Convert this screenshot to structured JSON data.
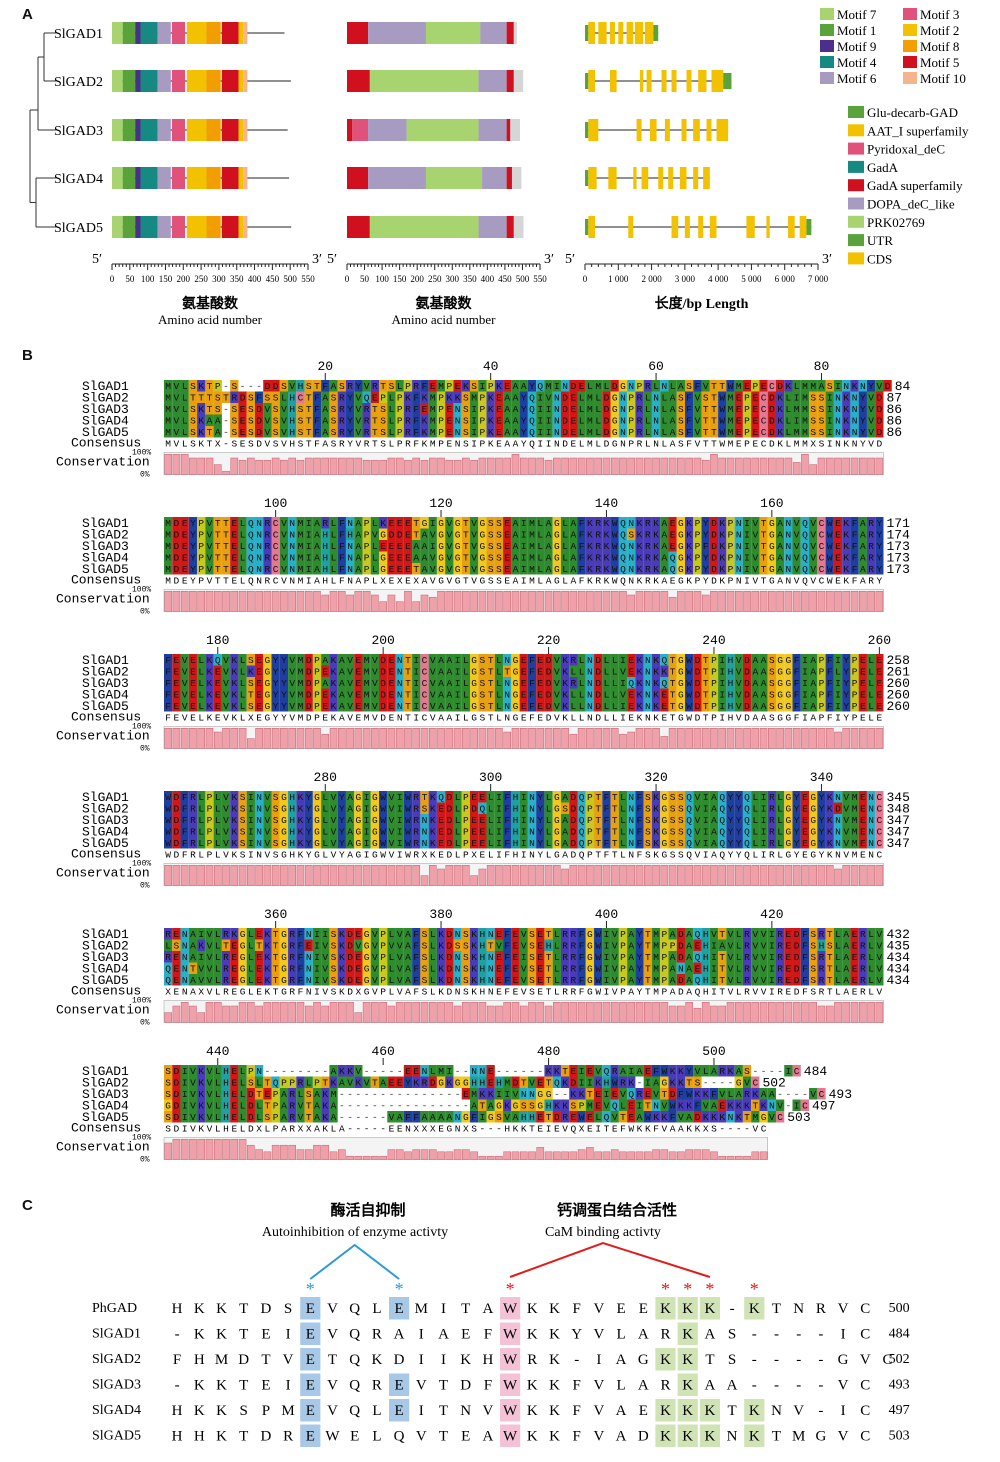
{
  "panel_a": {
    "label": "A",
    "genes": [
      "SlGAD1",
      "SlGAD2",
      "SlGAD3",
      "SlGAD4",
      "SlGAD5"
    ],
    "motif_legend": [
      {
        "name": "Motif 7",
        "color": "#a8d46f"
      },
      {
        "name": "Motif 3",
        "color": "#e0527a"
      },
      {
        "name": "Motif 1",
        "color": "#5aa33a"
      },
      {
        "name": "Motif 2",
        "color": "#f2c200"
      },
      {
        "name": "Motif 9",
        "color": "#4b2f8a"
      },
      {
        "name": "Motif 8",
        "color": "#f29e00"
      },
      {
        "name": "Motif 4",
        "color": "#168a82"
      },
      {
        "name": "Motif 5",
        "color": "#d0101e"
      },
      {
        "name": "Motif 6",
        "color": "#a79bc2"
      },
      {
        "name": "Motif 10",
        "color": "#f5b48c"
      }
    ],
    "domain_legend": [
      {
        "name": "Glu-decarb-GAD",
        "color": "#5aa33a"
      },
      {
        "name": "AAT_I superfamily",
        "color": "#f2c200"
      },
      {
        "name": "Pyridoxal_deC",
        "color": "#e0527a"
      },
      {
        "name": "GadA",
        "color": "#168a82"
      },
      {
        "name": "GadA superfamily",
        "color": "#d0101e"
      },
      {
        "name": "DOPA_deC_like",
        "color": "#a79bc2"
      },
      {
        "name": "PRK02769",
        "color": "#a8d46f"
      },
      {
        "name": "UTR",
        "color": "#5aa33a"
      },
      {
        "name": "CDS",
        "color": "#f2c200"
      }
    ],
    "axis1": {
      "ticks": [
        "0",
        "50",
        "100",
        "150",
        "200",
        "250",
        "300",
        "350",
        "400",
        "450",
        "500",
        "550"
      ],
      "label_cn": "氨基酸数",
      "label_en": "Amino acid number",
      "end5": "5′",
      "end3": "3′"
    },
    "axis2": {
      "ticks": [
        "0",
        "50",
        "100",
        "150",
        "200",
        "250",
        "300",
        "350",
        "400",
        "450",
        "500",
        "550"
      ],
      "label_cn": "氨基酸数",
      "label_en": "Amino acid number",
      "end5": "5′",
      "end3": "3′"
    },
    "axis3": {
      "ticks": [
        "0",
        "1 000",
        "2 000",
        "3 000",
        "4 000",
        "5 000",
        "6 000",
        "7 000"
      ],
      "label_cn": "长度/bp Length",
      "end5": "5′",
      "end3": "3′"
    },
    "motifs": [
      {
        "name": "Motif 7",
        "start": 0,
        "end": 30
      },
      {
        "name": "Motif 1",
        "start": 30,
        "end": 65
      },
      {
        "name": "Motif 9",
        "start": 65,
        "end": 80
      },
      {
        "name": "Motif 4",
        "start": 80,
        "end": 128
      },
      {
        "name": "Motif 6",
        "start": 128,
        "end": 165
      },
      {
        "name": "Motif 3",
        "start": 168,
        "end": 205
      },
      {
        "name": "Motif 2",
        "start": 210,
        "end": 265
      },
      {
        "name": "Motif 8",
        "start": 265,
        "end": 305
      },
      {
        "name": "Motif 5",
        "start": 308,
        "end": 355
      },
      {
        "name": "Motif 2",
        "start": 355,
        "end": 368
      },
      {
        "name": "Motif 10",
        "start": 368,
        "end": 380
      }
    ],
    "protein_lengths": [
      484,
      502,
      493,
      497,
      503
    ],
    "domains": [
      [
        {
          "name": "GadA superfamily",
          "start": 0,
          "end": 60
        },
        {
          "name": "DOPA_deC_like",
          "start": 60,
          "end": 225
        },
        {
          "name": "PRK02769",
          "start": 225,
          "end": 380
        },
        {
          "name": "DOPA_deC_like",
          "start": 380,
          "end": 455
        },
        {
          "name": "GadA superfamily",
          "start": 455,
          "end": 475
        }
      ],
      [
        {
          "name": "GadA superfamily",
          "start": 0,
          "end": 65
        },
        {
          "name": "PRK02769",
          "start": 65,
          "end": 375
        },
        {
          "name": "DOPA_deC_like",
          "start": 375,
          "end": 455
        },
        {
          "name": "GadA superfamily",
          "start": 455,
          "end": 475
        }
      ],
      [
        {
          "name": "GadA superfamily",
          "start": 0,
          "end": 15
        },
        {
          "name": "Pyridoxal_deC",
          "start": 15,
          "end": 60
        },
        {
          "name": "DOPA_deC_like",
          "start": 60,
          "end": 170
        },
        {
          "name": "PRK02769",
          "start": 170,
          "end": 375
        },
        {
          "name": "DOPA_deC_like",
          "start": 375,
          "end": 455
        },
        {
          "name": "GadA superfamily",
          "start": 455,
          "end": 465
        }
      ],
      [
        {
          "name": "GadA superfamily",
          "start": 0,
          "end": 60
        },
        {
          "name": "DOPA_deC_like",
          "start": 60,
          "end": 225
        },
        {
          "name": "PRK02769",
          "start": 225,
          "end": 385
        },
        {
          "name": "DOPA_deC_like",
          "start": 385,
          "end": 455
        },
        {
          "name": "GadA superfamily",
          "start": 455,
          "end": 470
        }
      ],
      [
        {
          "name": "GadA superfamily",
          "start": 0,
          "end": 65
        },
        {
          "name": "PRK02769",
          "start": 65,
          "end": 375
        },
        {
          "name": "DOPA_deC_like",
          "start": 375,
          "end": 455
        },
        {
          "name": "GadA superfamily",
          "start": 455,
          "end": 475
        }
      ]
    ],
    "genes_struct": [
      {
        "length": 2200,
        "utr": [
          [
            0,
            100
          ],
          [
            2050,
            2200
          ]
        ],
        "cds": [
          [
            100,
            300
          ],
          [
            400,
            650
          ],
          [
            750,
            900
          ],
          [
            1000,
            1150
          ],
          [
            1250,
            1450
          ],
          [
            1500,
            1750
          ],
          [
            1800,
            2050
          ]
        ]
      },
      {
        "length": 4400,
        "utr": [
          [
            0,
            100
          ],
          [
            4150,
            4400
          ]
        ],
        "cds": [
          [
            100,
            300
          ],
          [
            750,
            950
          ],
          [
            1650,
            1750
          ],
          [
            1850,
            2000
          ],
          [
            2300,
            2450
          ],
          [
            2600,
            2750
          ],
          [
            3050,
            3200
          ],
          [
            3400,
            3650
          ],
          [
            3800,
            4150
          ]
        ]
      },
      {
        "length": 4300,
        "utr": [
          [
            0,
            100
          ]
        ],
        "cds": [
          [
            100,
            400
          ],
          [
            1550,
            1700
          ],
          [
            1950,
            2150
          ],
          [
            2400,
            2550
          ],
          [
            2900,
            3050
          ],
          [
            3250,
            3450
          ],
          [
            3650,
            3800
          ],
          [
            3950,
            4300
          ]
        ]
      },
      {
        "length": 3750,
        "utr": [
          [
            0,
            100
          ]
        ],
        "cds": [
          [
            100,
            350
          ],
          [
            700,
            950
          ],
          [
            1450,
            1550
          ],
          [
            1700,
            1900
          ],
          [
            2200,
            2350
          ],
          [
            2500,
            2650
          ],
          [
            2850,
            3050
          ],
          [
            3250,
            3400
          ],
          [
            3550,
            3750
          ]
        ]
      },
      {
        "length": 6800,
        "utr": [
          [
            0,
            100
          ],
          [
            6650,
            6800
          ]
        ],
        "cds": [
          [
            100,
            300
          ],
          [
            1300,
            1450
          ],
          [
            2600,
            2800
          ],
          [
            3000,
            3150
          ],
          [
            3400,
            3550
          ],
          [
            3750,
            3950
          ],
          [
            4850,
            5100
          ],
          [
            5450,
            5550
          ],
          [
            6100,
            6300
          ],
          [
            6450,
            6650
          ]
        ]
      }
    ]
  },
  "panel_b": {
    "label": "B",
    "row_labels": [
      "SlGAD1",
      "SlGAD2",
      "SlGAD3",
      "SlGAD4",
      "SlGAD5"
    ],
    "consensus_label": "Consensus",
    "conservation_label": "Conservation",
    "pct_top": "100%",
    "pct_bot": "0%",
    "blocks": [
      {
        "ticks": [
          {
            "label": "20",
            "col": 20
          },
          {
            "label": "40",
            "col": 40
          },
          {
            "label": "60",
            "col": 60
          },
          {
            "label": "80",
            "col": 80
          }
        ],
        "seqs": [
          "MVLSKTP-S---DDSVHSTFASRYVRTSLPRFEMPEKSIPKEAAYQMINDELMLDGNPRLNLASFVTTWMEPECDKLMMASINKNYVD",
          "MVLTTTSTRDSFSSLHCTFASRYVQEPLPKFKMPKKSMPKEAAYQIVNDELMLDGNPRLNLASFVSTWMEPECDKLIMSSINKNYVD",
          "MVLSKTS-SESDVSVHSTFASRYVRTSLPRFEMPENSIPKEAAYQIINDELMLDGNPRLNLASFVTTWMEPECDKLMMSSINKNYVD",
          "MVLSKAA-SESDVSVHSTFASRYVRTSLPRFKMPENSIPKEAAYQIINDELMLDGNPRLNLASFVTTWMEPECDKLIMSSINKNYVD",
          "MVLSKTA-SESDVSVHSTFASRYVRTSLPRFKMPENSIPKEAAYQIINDELMLDGNPRLNLASFVTTWMEPECDKLMMSSINKNYVD"
        ],
        "ends": [
          "84",
          "87",
          "86",
          "86",
          "86"
        ],
        "consensus": "MVLSKTX-SESDVSVHSTFASRYVRTSLPRFKMPENSIPKEAAYQIINDELMLDGNPRLNLASFVTTWMEPECDKLMMXSINKNYVD"
      },
      {
        "ticks": [
          {
            "label": "100",
            "col": 14
          },
          {
            "label": "120",
            "col": 34
          },
          {
            "label": "140",
            "col": 54
          },
          {
            "label": "160",
            "col": 74
          }
        ],
        "seqs": [
          "MDEYPVTTELQNRCVNMIARLFNAPLKEEETGIGVGTVGSSEAIMLAGLAFKRKWQNKRKAEGKPYDKPNIVTGANVQVCWEKFARY",
          "MDEYPVTTELQNRCVNMIAHLFHAPVGDDETAVGVGTVGSSEAIMLAGLAFKRKWQSKRKAEGKPYDKPNIVTGANVQVCWEKFARY",
          "MDEYPVTTELQNRCVNMIAHLFNAPLEEEEAAIGVGTVGSSEAIMLAGLAFKRKWQNKRKAEGKPFDKPNIVTGANVQVCWEKFARY",
          "MDEYPVTTELQNRCVNMIAHLFNAPLGEEEAAVGVGTVGSSEAIMLAGLAFKRKWQNKRKAQGKPYDKPNIVTGANVQVCWEKFARY",
          "MDEYPVTTELQNRCVNMIAHLFNAPLGEEETAVGVGTVGSSEAIMLAGLAFKRKWQNKRKAQGKPYDKPNIVTGANVQVCWEKFARY"
        ],
        "ends": [
          "171",
          "174",
          "173",
          "173",
          "173"
        ],
        "consensus": "MDEYPVTTELQNRCVNMIAHLFNAPLXEXEXAVGVGTVGSSEAIMLAGLAFKRKWQNKRKAEGKPYDKPNIVTGANVQVCWEKFARY"
      },
      {
        "ticks": [
          {
            "label": "180",
            "col": 7
          },
          {
            "label": "200",
            "col": 27
          },
          {
            "label": "220",
            "col": 47
          },
          {
            "label": "240",
            "col": 67
          },
          {
            "label": "260",
            "col": 87
          }
        ],
        "seqs": [
          "FEVELKQVKLSEGYYVMDPAKAVEMVDENTICVAAILGSTLNGEFEDVKRLNDLLIEKNKQTGWDTPIHVDAASGGFIAPFIYPELE",
          "FEVELKEVKLKEGYYVMDPEKAVEMVDENTICVAAILGSTLTGEFEDVKLLNDLLVEKNKKTGWDTPIHVDAASGGFIAPFLYPELE",
          "FEVELKEVKLSEGYYVMDPAKAVEMVDENTICVAAILGSTLNGEFEDVKRLNDLLIQKNKQTGWDTPIHVDAASGGFIAPFIYPELE",
          "FEVELKEVKLTEGYYVMDPEKAVEMVDENTICVAAILGSTLNGEFEDVKLLNDLLVEKNKETGWDTPIHVDAASGGFIAPFIYPELE",
          "FEVELKEVKLSEGYYVMDPEKAVEMVDENTICVAAILGSTLNGEFEDVKLLNDLLIEKNKETGWDTPIHVDAASGGFIAPFIYPELE"
        ],
        "ends": [
          "258",
          "261",
          "260",
          "260",
          "260"
        ],
        "consensus": "FEVELKEVKLXEGYYVMDPEKAVEMVDENTICVAAILGSTLNGEFEDVKLLNDLLIEKNKETGWDTPIHVDAASGGFIAPFIYPELE"
      },
      {
        "ticks": [
          {
            "label": "280",
            "col": 20
          },
          {
            "label": "300",
            "col": 40
          },
          {
            "label": "320",
            "col": 60
          },
          {
            "label": "340",
            "col": 80
          }
        ],
        "seqs": [
          "WDFRLPLVKSINVSGHKYGLVYAGIGWVIWRTKQDLPEELIFHINYLGADQPTFTLNFSKGSSQVIAQYYQLIRLGYEGYKNVMENC",
          "WDFRLPLVKSINVSGHKYGLVYAGIGWVIWRSKEDLPDQLIFHINYLGSDQPTFTLNFSKGSSQVIAQYYQLIRLGYEGYKDVMENC",
          "WDFRLPLVKSINVSGHKYGLVYAGIGWVIWRNKEDLPEELIFHINYLGADQPTFTLNFSKGSSQVIAQYYQLIRLGYEGYKNVMENC",
          "WDFRLPLVKSINVSGHKYGLVYAGIGWVIWRNKEDLPEELIFHINYLGADQPTFTLNFSKGSSQVIAQYYQLIRLGYEGYKNVMENC",
          "WDFRLPLVKSINVSGHKYGLVYAGIGWVIWRNKEDLPEELIFHINYLGADQPTFTLNFSKGSSQVIAQYYQLIRLGYEGYKNVMENC"
        ],
        "ends": [
          "345",
          "348",
          "347",
          "347",
          "347"
        ],
        "consensus": "WDFRLPLVKSINVSGHKYGLVYAGIGWVIWRXKEDLPXELIFHINYLGADQPTFTLNFSKGSSQVIAQYYQLIRLGYEGYKNVMENC"
      },
      {
        "ticks": [
          {
            "label": "360",
            "col": 14
          },
          {
            "label": "380",
            "col": 34
          },
          {
            "label": "400",
            "col": 54
          },
          {
            "label": "420",
            "col": 74
          }
        ],
        "seqs": [
          "RENAIVLRKGLEKTGRFNIISKDEGVPLVAFSLKDNSKHNEFEVSETLRRFGWIVPAYTMPADAQHVTVLRVVIREDFSRTLAERLV",
          "LSNAKVLTEGLTKTGRFEIVSKDVGVPVVAFSLKDSSKHTVFEVSEHLRRFGWIVPAYTMPPDAEHIAVLRVVIREDFSHSLAERLV",
          "RENAIVLREGLEKTGRFNIVSKDEGVPLVAFSLKDNSKHNEFEISETLRRFGWIVPAYTMPADAQHITVLRVVIREDFSRTLAERLV",
          "QENTVVLREGLEKTGRFNIVSKDEGVPLVAFSLKDNSKHNEFEVSETLRRFGWIVPAYTMPANAEHITVLRVVIREDFSRTLAERLV",
          "QENAVVLREGLEKTGRFNIVSKDEGVPLVAFSLKDNSKHNEFEVSETLRRFGWIVPAYTMPADAQHITVLRVVIREDFSRTLAERLV"
        ],
        "ends": [
          "432",
          "435",
          "434",
          "434",
          "434"
        ],
        "consensus": "XENAXVLREGLEKTGRFNIVSKDXGVPLVAFSLKDNSKHNEFEVSETLRRFGWIVPAYTMPADAQHITVLRVVIREDFSRTLAERLV"
      },
      {
        "ticks": [
          {
            "label": "440",
            "col": 7
          },
          {
            "label": "460",
            "col": 27
          },
          {
            "label": "480",
            "col": 47
          },
          {
            "label": "500",
            "col": 67
          }
        ],
        "seqs": [
          "SDIVKVLHELPN--------AKKV-----EENLMI--NNE------KKTEIEVQRAIAEFWKKYVLARKAS----IC",
          "SDIVKVLHELSLTQPPRLPTKAVKVTAEEYKRDGKGGHHEHMDTVETQKDIIKHWRK-IAGKKTS----GVC",
          "SDIVKVLHELDTEPARLSAKM---------------EMKKIIVNNGG--KKTEIEVQREVTDFWKKFVLARKAA----VC",
          "GDIVKVLHELDLTPARVTAKA----------------ATAGKGSSGHKKSPMEVQLEITNVWKKFVAEKKKTKNV-IC",
          "SDIVKVLHELDLSPARVTAKA------VAFFAAAANGFIGSVAHHETDREWELQVTEAWKKFVADKKKNKTMGVC"
        ],
        "ends": [
          "484",
          "502",
          "493",
          "497",
          "503"
        ],
        "consensus": "SDIVKVLHELDXLPARXXAKLA-----EENXXXEGNXS---HKKTEIEVQXEITEFWKKFVAAKKXS----VC"
      }
    ]
  },
  "panel_c": {
    "label": "C",
    "group1_cn": "酶活自抑制",
    "group1_en": "Autoinhibition of enzyme activty",
    "group2_cn": "钙调蛋白结合活性",
    "group2_en": "CaM binding activty",
    "rows": [
      {
        "name": "PhGAD",
        "seq": "HKKTDSEVQLEMITAWKKFVEEKKK-KTNRVC",
        "end": "500"
      },
      {
        "name": "SlGAD1",
        "seq": "-KKTEIEVQRAIAEFWKKYVLARKAS----IC",
        "end": "484"
      },
      {
        "name": "SlGAD2",
        "seq": "FHMDTVETQKDIIKHWRK-IAGKKTS----GVC",
        "end": "502"
      },
      {
        "name": "SlGAD3",
        "seq": "-KKTEIEVQREVTDFWKKFVLARKAA----VC",
        "end": "493"
      },
      {
        "name": "SlGAD4",
        "seq": "HKKSPMEVQLEITNVWKKFVAEKKKTKNV-IC",
        "end": "497"
      },
      {
        "name": "SlGAD5",
        "seq": "HHKTDREWELQVTEAWKKFVADKKKNKTMGVC",
        "end": "503"
      }
    ],
    "star": "*",
    "colors": {
      "blue": "#2e9bd6",
      "red": "#e31a1c",
      "blue_box": "#a8c8e8",
      "pink_box": "#f4c2d6",
      "green_box": "#cfe3b4"
    }
  }
}
